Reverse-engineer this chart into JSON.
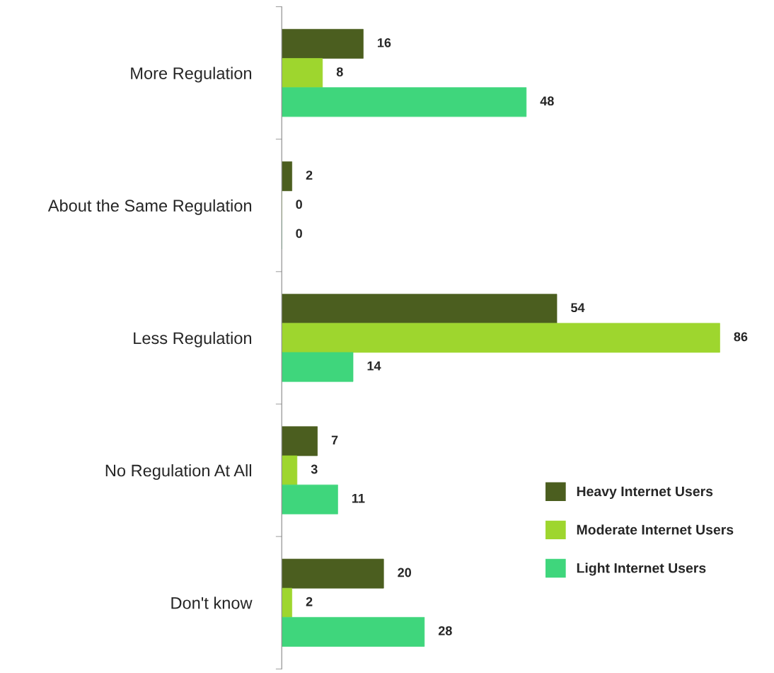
{
  "chart_data": {
    "type": "bar",
    "orientation": "horizontal",
    "categories": [
      "More Regulation",
      "About the Same Regulation",
      "Less Regulation",
      "No Regulation At All",
      "Don't know"
    ],
    "series": [
      {
        "name": "Heavy Internet Users",
        "color": "#4b5e1f",
        "values": [
          16,
          2,
          54,
          7,
          20
        ]
      },
      {
        "name": "Moderate Internet Users",
        "color": "#9ed62e",
        "values": [
          8,
          0,
          86,
          3,
          2
        ]
      },
      {
        "name": "Light Internet Users",
        "color": "#3fd67c",
        "values": [
          48,
          0,
          14,
          11,
          28
        ]
      }
    ],
    "data_labels": true,
    "legend": "bottom right",
    "grid": false
  }
}
